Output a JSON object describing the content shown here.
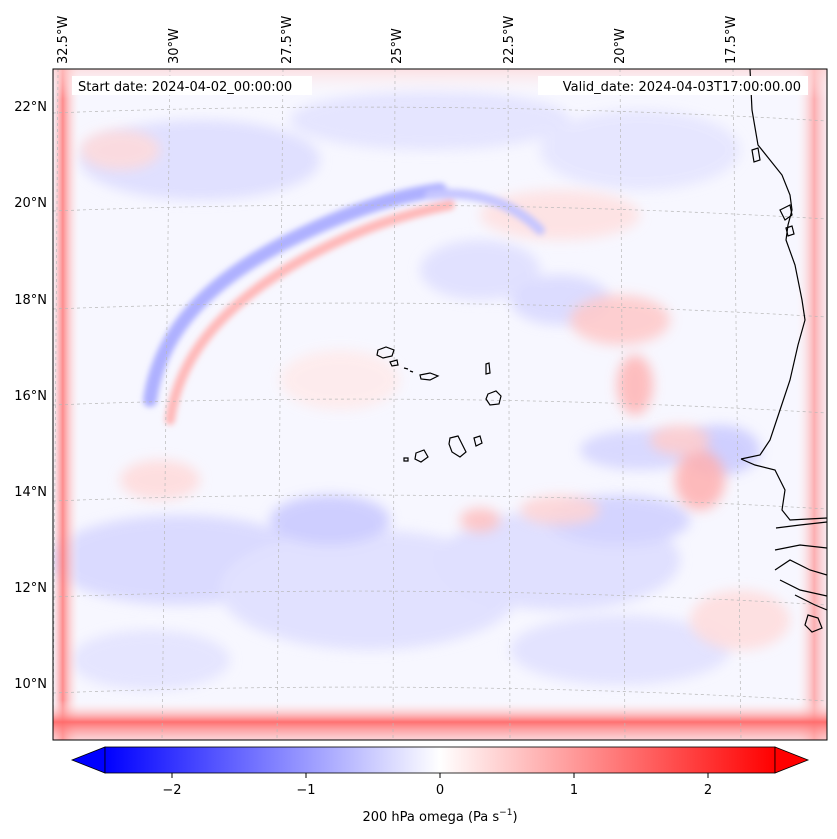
{
  "map": {
    "start_label": "Start date: 2024-04-02_00:00:00",
    "valid_label": "Valid_date: 2024-04-03T17:00:00.00",
    "lon_ticks": [
      "32.5°W",
      "30°W",
      "27.5°W",
      "25°W",
      "22.5°W",
      "20°W",
      "17.5°W"
    ],
    "lat_ticks": [
      "22°N",
      "20°N",
      "18°N",
      "16°N",
      "14°N",
      "12°N",
      "10°N"
    ]
  },
  "colorbar": {
    "label": "200 hPa omega (Pa s",
    "label_sup": "−1",
    "label_tail": ")",
    "ticks": [
      "−2",
      "−1",
      "0",
      "1",
      "2"
    ],
    "min_color": "#0000ff",
    "mid_color": "#ffffff",
    "max_color": "#ff0000"
  },
  "chart_data": {
    "type": "heatmap",
    "variable": "200 hPa omega",
    "units": "Pa s^-1",
    "range": [
      -2.6,
      2.6
    ],
    "colorbar_ticks": [
      -2,
      -1,
      0,
      1,
      2
    ],
    "lon_ticks_deg": [
      -32.5,
      -30,
      -27.5,
      -25,
      -22.5,
      -20,
      -17.5
    ],
    "lat_ticks_deg": [
      22,
      20,
      18,
      16,
      14,
      12,
      10
    ]
  }
}
